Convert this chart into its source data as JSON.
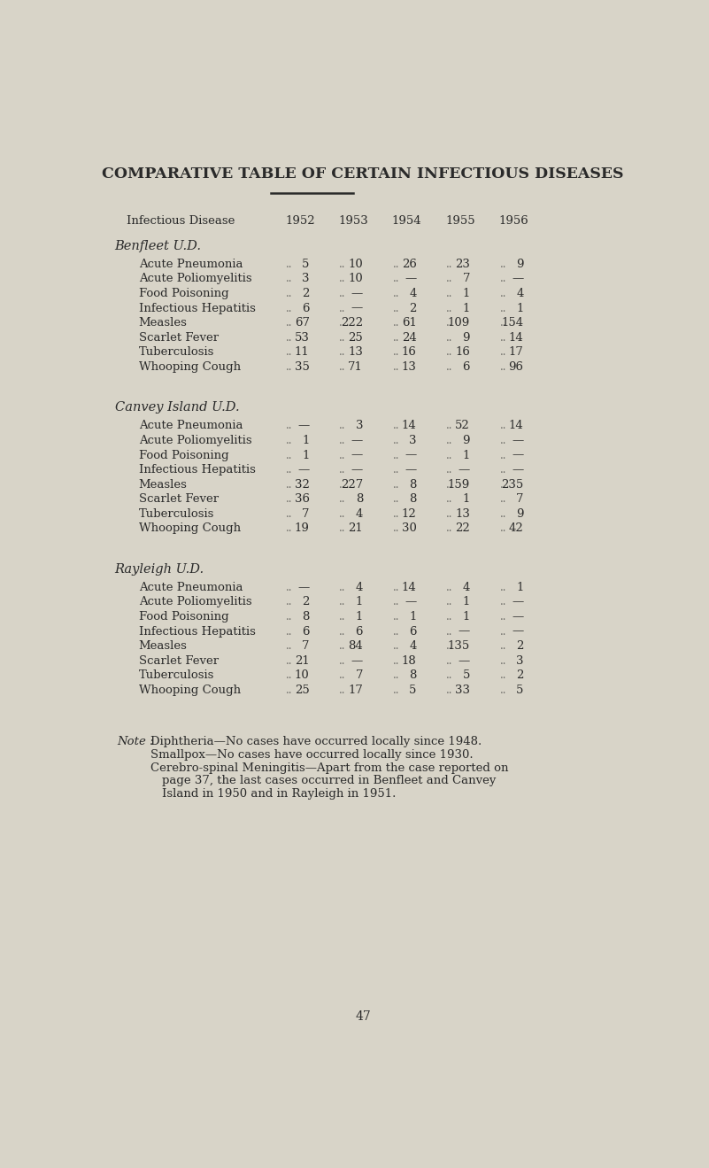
{
  "bg_color": "#d8d4c8",
  "text_color": "#2a2a2a",
  "title": "COMPARATIVE TABLE OF CERTAIN INFECTIOUS DISEASES",
  "col_header": [
    "Infectious Disease",
    "1952",
    "1953",
    "1954",
    "1955",
    "1956"
  ],
  "sections": [
    {
      "heading": "Benfleet U.D.",
      "rows": [
        [
          "Acute Pneumonia",
          "..",
          "5",
          "..",
          "10",
          "..",
          "26",
          "..",
          "23",
          "..",
          "9"
        ],
        [
          "Acute Poliomyelitis",
          "..",
          "3",
          "..",
          "10",
          "..",
          "—",
          "..",
          "7",
          "..",
          "—"
        ],
        [
          "Food Poisoning",
          "..",
          "2",
          "..",
          "—",
          "..",
          "4",
          "..",
          "1",
          "..",
          "4"
        ],
        [
          "Infectious Hepatitis",
          "..",
          "6",
          "..",
          "—",
          "..",
          "2",
          "..",
          "1",
          "..",
          "1"
        ],
        [
          "Measles",
          "..",
          "67",
          "..",
          "222",
          "..",
          "61",
          "..",
          "109",
          "..",
          "154"
        ],
        [
          "Scarlet Fever",
          "..",
          "53",
          "..",
          "25",
          "..",
          "24",
          "..",
          "9",
          "..",
          "14"
        ],
        [
          "Tuberculosis",
          "..",
          "11",
          "..",
          "13",
          "..",
          "16",
          "..",
          "16",
          "..",
          "17"
        ],
        [
          "Whooping Cough",
          "..",
          "35",
          "..",
          "71",
          "..",
          "13",
          "..",
          "6",
          "..",
          "96"
        ]
      ]
    },
    {
      "heading": "Canvey Island U.D.",
      "rows": [
        [
          "Acute Pneumonia",
          "..",
          "—",
          "..",
          "3",
          "..",
          "14",
          "..",
          "52",
          "..",
          "14"
        ],
        [
          "Acute Poliomyelitis",
          "..",
          "1",
          "..",
          "—",
          "..",
          "3",
          "..",
          "9",
          "..",
          "—"
        ],
        [
          "Food Poisoning",
          "..",
          "1",
          "..",
          "—",
          "..",
          "—",
          "..",
          "1",
          "..",
          "—"
        ],
        [
          "Infectious Hepatitis",
          "..",
          "—",
          "..",
          "—",
          "..",
          "—",
          "..",
          "—",
          "..",
          "—"
        ],
        [
          "Measles",
          "..",
          "32",
          "..",
          "227",
          "..",
          "8",
          "..",
          "159",
          "..",
          "235"
        ],
        [
          "Scarlet Fever",
          "..",
          "36",
          "..",
          "8",
          "..",
          "8",
          "..",
          "1",
          "..",
          "7"
        ],
        [
          "Tuberculosis",
          "..",
          "7",
          "..",
          "4",
          "..",
          "12",
          "..",
          "13",
          "..",
          "9"
        ],
        [
          "Whooping Cough",
          "..",
          "19",
          "..",
          "21",
          "..",
          "30",
          "..",
          "22",
          "..",
          "42"
        ]
      ]
    },
    {
      "heading": "Rayleigh U.D.",
      "rows": [
        [
          "Acute Pneumonia",
          "..",
          "—",
          "..",
          "4",
          "..",
          "14",
          "..",
          "4",
          "..",
          "1"
        ],
        [
          "Acute Poliomyelitis",
          "..",
          "2",
          "..",
          "1",
          "..",
          "—",
          "..",
          "1",
          "..",
          "—"
        ],
        [
          "Food Poisoning",
          "..",
          "8",
          "..",
          "1",
          "..",
          "1",
          "..",
          "1",
          "..",
          "—"
        ],
        [
          "Infectious Hepatitis",
          "..",
          "6",
          "..",
          "6",
          "..",
          "6",
          "..",
          "—",
          "..",
          "—"
        ],
        [
          "Measles",
          "..",
          "7",
          "..",
          "84",
          "..",
          "4",
          "..",
          "135",
          "..",
          "2"
        ],
        [
          "Scarlet Fever",
          "..",
          "21",
          "..",
          "—",
          "..",
          "18",
          "..",
          "—",
          "..",
          "3"
        ],
        [
          "Tuberculosis",
          "..",
          "10",
          "..",
          "7",
          "..",
          "8",
          "..",
          "5",
          "..",
          "2"
        ],
        [
          "Whooping Cough",
          "..",
          "25",
          "..",
          "17",
          "..",
          "5",
          "..",
          "33",
          "..",
          "5"
        ]
      ]
    }
  ],
  "notes": [
    [
      "note_label",
      "Note : ",
      "Diphtheria—No cases have occurred locally since 1948."
    ],
    [
      "note_indent",
      "Smallpox—No cases have occurred locally since 1930."
    ],
    [
      "note_indent",
      "Cerebro-spinal Meningitis—Apart from the case reported on"
    ],
    [
      "note_indent2",
      "page 37, the last cases occurred in Benfleet and Canvey"
    ],
    [
      "note_indent2",
      "Island in 1950 and in Rayleigh in 1951."
    ]
  ],
  "page_number": "47"
}
